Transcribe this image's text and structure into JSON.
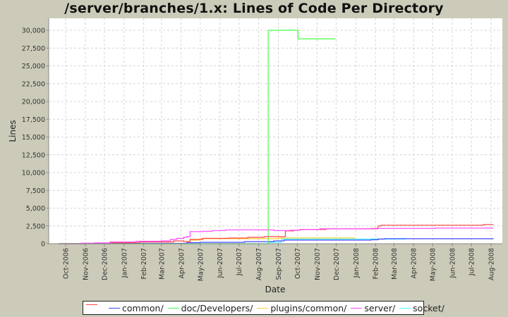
{
  "chart_data": {
    "type": "line",
    "title": "/server/branches/1.x: Lines of Code Per Directory",
    "xlabel": "Date",
    "ylabel": "Lines",
    "ylim": [
      0,
      31500
    ],
    "yticks": [
      0,
      2500,
      5000,
      7500,
      10000,
      12500,
      15000,
      17500,
      20000,
      22500,
      25000,
      27500,
      30000
    ],
    "ytick_labels": [
      "0",
      "2,500",
      "5,000",
      "7,500",
      "10,000",
      "12,500",
      "15,000",
      "17,500",
      "20,000",
      "22,500",
      "25,000",
      "27,500",
      "30,000"
    ],
    "xtick_labels": [
      "Oct-2006",
      "Nov-2006",
      "Dec-2006",
      "Jan-2007",
      "Feb-2007",
      "Mar-2007",
      "Apr-2007",
      "May-2007",
      "Jun-2007",
      "Jul-2007",
      "Aug-2007",
      "Sep-2007",
      "Oct-2007",
      "Nov-2007",
      "Dec-2007",
      "Jan-2008",
      "Feb-2008",
      "Mar-2008",
      "Apr-2008",
      "May-2008",
      "Jun-2008",
      "Jul-2008",
      "Aug-2008"
    ],
    "grid": true,
    "legend_position": "bottom",
    "step": true,
    "series": [
      {
        "name": "",
        "color": "#ff4444",
        "points": [
          [
            "2006-09-20",
            0
          ],
          [
            "2006-11-05",
            50
          ],
          [
            "2006-12-10",
            150
          ],
          [
            "2007-01-25",
            250
          ],
          [
            "2007-03-20",
            400
          ],
          [
            "2007-04-05",
            300
          ],
          [
            "2007-04-15",
            600
          ],
          [
            "2007-05-05",
            750
          ],
          [
            "2007-06-15",
            800
          ],
          [
            "2007-07-15",
            900
          ],
          [
            "2007-08-10",
            1000
          ],
          [
            "2007-08-25",
            1000
          ],
          [
            "2007-09-12",
            1800
          ],
          [
            "2007-09-25",
            1900
          ],
          [
            "2007-10-05",
            2000
          ],
          [
            "2007-10-20",
            2000
          ],
          [
            "2007-11-15",
            2100
          ],
          [
            "2008-01-25",
            2150
          ],
          [
            "2008-02-05",
            2500
          ],
          [
            "2008-02-10",
            2600
          ],
          [
            "2008-07-15",
            2600
          ],
          [
            "2008-07-20",
            2700
          ],
          [
            "2008-08-05",
            2700
          ]
        ]
      },
      {
        "name": "common/",
        "color": "#4444ff",
        "points": [
          [
            "2006-09-20",
            0
          ],
          [
            "2006-12-15",
            50
          ],
          [
            "2007-04-10",
            150
          ],
          [
            "2007-05-01",
            200
          ],
          [
            "2007-07-10",
            300
          ],
          [
            "2007-08-25",
            400
          ],
          [
            "2007-09-10",
            500
          ],
          [
            "2008-01-25",
            550
          ],
          [
            "2008-02-05",
            650
          ],
          [
            "2008-02-15",
            700
          ],
          [
            "2008-08-05",
            700
          ]
        ]
      },
      {
        "name": "doc/Developers/",
        "color": "#44ff44",
        "points": [
          [
            "2006-09-20",
            0
          ],
          [
            "2007-08-15",
            0
          ],
          [
            "2007-08-16",
            30000
          ],
          [
            "2007-10-01",
            30000
          ],
          [
            "2007-10-02",
            28800
          ],
          [
            "2007-11-30",
            28800
          ]
        ]
      },
      {
        "name": "plugins/common/",
        "color": "#ffcc33",
        "points": [
          [
            "2006-09-20",
            0
          ],
          [
            "2007-04-10",
            300
          ],
          [
            "2007-04-15",
            500
          ],
          [
            "2007-05-01",
            700
          ],
          [
            "2007-09-01",
            800
          ],
          [
            "2007-12-31",
            800
          ]
        ]
      },
      {
        "name": "server/",
        "color": "#ff44ff",
        "points": [
          [
            "2006-09-20",
            0
          ],
          [
            "2006-10-25",
            80
          ],
          [
            "2006-11-15",
            120
          ],
          [
            "2006-12-10",
            250
          ],
          [
            "2007-01-20",
            350
          ],
          [
            "2007-03-01",
            400
          ],
          [
            "2007-03-15",
            600
          ],
          [
            "2007-03-25",
            750
          ],
          [
            "2007-04-05",
            900
          ],
          [
            "2007-04-10",
            1000
          ],
          [
            "2007-04-15",
            1700
          ],
          [
            "2007-05-05",
            1750
          ],
          [
            "2007-05-20",
            1850
          ],
          [
            "2007-06-10",
            1950
          ],
          [
            "2007-08-25",
            1850
          ],
          [
            "2007-09-20",
            1900
          ],
          [
            "2007-10-05",
            2000
          ],
          [
            "2007-11-05",
            2100
          ],
          [
            "2007-11-20",
            2100
          ],
          [
            "2008-02-05",
            2150
          ],
          [
            "2008-05-05",
            2200
          ],
          [
            "2008-08-05",
            2200
          ]
        ]
      },
      {
        "name": "socket/",
        "color": "#44ffff",
        "points": [
          [
            "2006-09-20",
            0
          ],
          [
            "2007-08-15",
            0
          ],
          [
            "2007-08-16",
            200
          ],
          [
            "2007-09-05",
            200
          ],
          [
            "2007-09-06",
            650
          ],
          [
            "2008-02-15",
            650
          ],
          [
            "2008-03-20",
            650
          ]
        ]
      }
    ]
  },
  "legend": {
    "items": [
      {
        "label": "",
        "color": "#ff4444"
      },
      {
        "label": "common/",
        "color": "#4444ff"
      },
      {
        "label": "doc/Developers/",
        "color": "#44ff44"
      },
      {
        "label": "plugins/common/",
        "color": "#ffcc33"
      },
      {
        "label": "server/",
        "color": "#ff44ff"
      },
      {
        "label": "socket/",
        "color": "#44ffff"
      }
    ]
  }
}
